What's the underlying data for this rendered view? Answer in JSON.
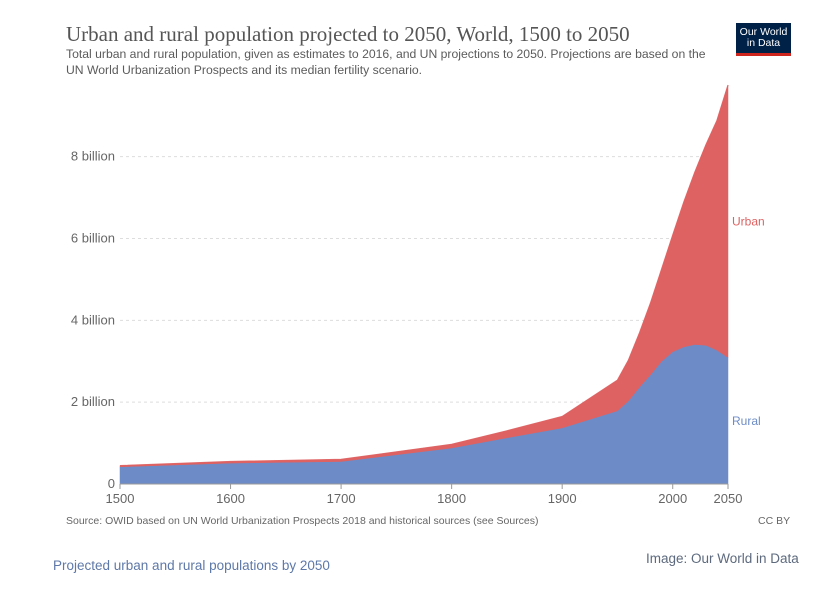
{
  "chart_data": {
    "type": "area",
    "stacked": true,
    "title": "Urban and rural population projected to 2050, World, 1500 to 2050",
    "subtitle": "Total urban and rural population, given as estimates to 2016, and UN projections to 2050. Projections are based on the UN World Urbanization Prospects and its median fertility scenario.",
    "x": [
      1500,
      1600,
      1700,
      1800,
      1850,
      1900,
      1950,
      1960,
      1970,
      1980,
      1990,
      2000,
      2010,
      2020,
      2030,
      2040,
      2050
    ],
    "series": [
      {
        "name": "Rural",
        "color": "#6d8cc7",
        "values": [
          0.42,
          0.51,
          0.55,
          0.88,
          1.13,
          1.37,
          1.79,
          2.03,
          2.37,
          2.67,
          3.0,
          3.23,
          3.35,
          3.41,
          3.39,
          3.27,
          3.09
        ]
      },
      {
        "name": "Urban",
        "color": "#df6262",
        "values": [
          0.03,
          0.04,
          0.05,
          0.09,
          0.17,
          0.28,
          0.75,
          1.0,
          1.33,
          1.76,
          2.26,
          2.85,
          3.54,
          4.21,
          4.9,
          5.61,
          6.66
        ]
      }
    ],
    "ylim": [
      0,
      9.8
    ],
    "yticks": [
      {
        "value": 0,
        "label": "0"
      },
      {
        "value": 2,
        "label": "2 billion"
      },
      {
        "value": 4,
        "label": "4 billion"
      },
      {
        "value": 6,
        "label": "6 billion"
      },
      {
        "value": 8,
        "label": "8 billion"
      }
    ],
    "xticks": [
      1500,
      1600,
      1700,
      1800,
      1900,
      2000,
      2050
    ],
    "grid": true,
    "legend": "inline-right"
  },
  "logo": {
    "line1": "Our World",
    "line2": "in Data"
  },
  "source": "Source: OWID based on UN World Urbanization Prospects 2018 and historical sources (see Sources)",
  "license": "CC BY",
  "caption": "Projected urban and rural populations by 2050",
  "credit": "Image: Our World in Data"
}
